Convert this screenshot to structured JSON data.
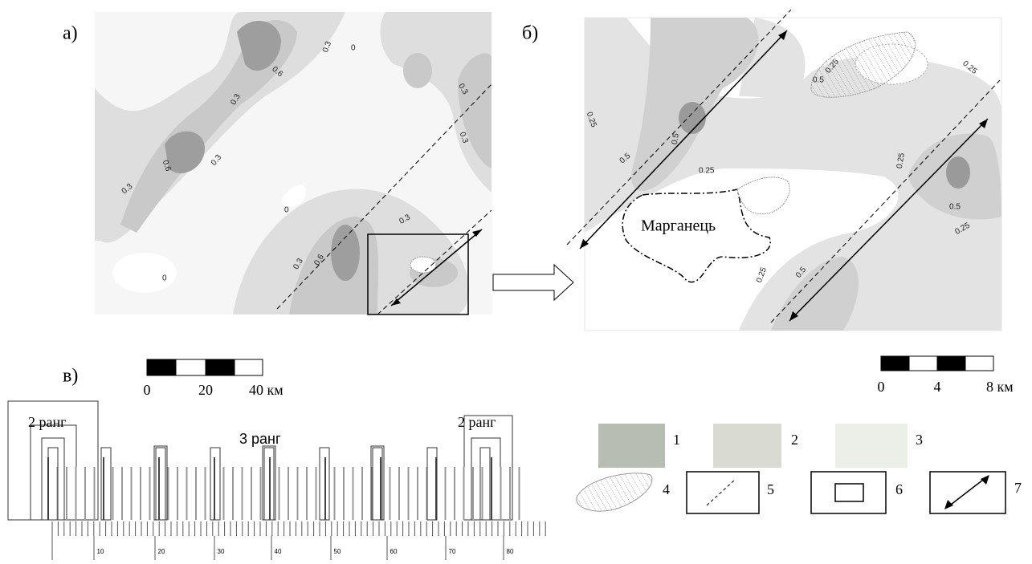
{
  "panel_a": {
    "label": "а)",
    "contour_labels": [
      "0.3",
      "0",
      "0.6",
      "0.3",
      "0.6",
      "0.3",
      "0.3",
      "0.3",
      "0",
      "0.3",
      "0.3",
      "0.6",
      "0",
      "0.3"
    ]
  },
  "panel_b": {
    "label": "б)",
    "place": "Марганець",
    "contour_labels": [
      "0.25",
      "0.5",
      "0.25",
      "0.25",
      "0.5",
      "0.5",
      "0.25",
      "0.25",
      "0.5",
      "0.25",
      "0.25",
      "0.5"
    ]
  },
  "panel_c": {
    "label": "в)",
    "ranks": [
      "2 ранг",
      "3 ранг",
      "2 ранг"
    ],
    "ruler_labels": [
      "10",
      "20",
      "30",
      "40",
      "50",
      "60",
      "70",
      "80"
    ]
  },
  "scale_a": [
    "0",
    "20",
    "40 км"
  ],
  "scale_b": [
    "0",
    "4",
    "8 км"
  ],
  "legend": [
    "1",
    "2",
    "3",
    "4",
    "5",
    "6",
    "7"
  ]
}
